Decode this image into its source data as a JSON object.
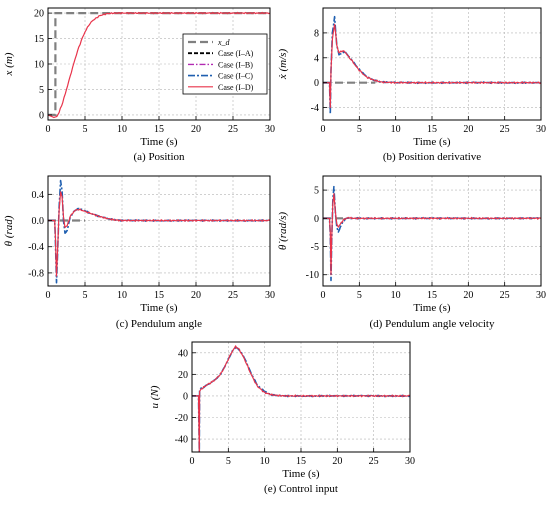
{
  "legend": {
    "entries": [
      {
        "label": "x_d",
        "color": "#808080",
        "dash": "8,4",
        "width": 2.2
      },
      {
        "label": "Case (I–A)",
        "color": "#000000",
        "dash": "4,2",
        "width": 1.8
      },
      {
        "label": "Case (I–B)",
        "color": "#b22ab2",
        "dash": "6,2,1.5,2",
        "width": 1.4
      },
      {
        "label": "Case (I–C)",
        "color": "#1f5fb0",
        "dash": "7,2,2,2",
        "width": 1.6
      },
      {
        "label": "Case (I–D)",
        "color": "#e8334a",
        "dash": "",
        "width": 1.2
      }
    ]
  },
  "chart_data": [
    {
      "type": "line",
      "caption": "(a) Position",
      "xlabel": "Time (s)",
      "ylabel": "x (m)",
      "xlim": [
        0,
        30
      ],
      "ylim": [
        -1,
        21
      ],
      "xticks": [
        0,
        5,
        10,
        15,
        20,
        25,
        30
      ],
      "yticks": [
        0,
        5,
        10,
        15,
        20
      ],
      "grid": true,
      "legend_position": "right",
      "reference": {
        "name": "x_d",
        "x": [
          0,
          1,
          1,
          30
        ],
        "y": [
          0,
          0,
          20,
          20
        ]
      },
      "series": [
        {
          "name": "Case (I–D)",
          "x": [
            0,
            0.8,
            1.2,
            1.5,
            2,
            2.5,
            3,
            3.5,
            4,
            4.5,
            5,
            5.5,
            6,
            7,
            8,
            9,
            10,
            15,
            20,
            25,
            30
          ],
          "y": [
            0,
            -0.5,
            -0.3,
            0.5,
            2.5,
            5,
            7.6,
            10.2,
            12.6,
            14.6,
            16.3,
            17.6,
            18.5,
            19.5,
            19.9,
            20.0,
            20.0,
            20.0,
            20.0,
            20.0,
            20.0
          ]
        }
      ]
    },
    {
      "type": "line",
      "caption": "(b) Position derivative",
      "xlabel": "Time (s)",
      "ylabel": "ẋ (m/s)",
      "xlim": [
        0,
        30
      ],
      "ylim": [
        -6,
        12
      ],
      "xticks": [
        0,
        5,
        10,
        15,
        20,
        25,
        30
      ],
      "yticks": [
        -4,
        0,
        4,
        8
      ],
      "grid": true,
      "reference": {
        "name": "ẋ_d",
        "x": [
          0,
          7.2
        ],
        "y": [
          0,
          0
        ]
      },
      "series": [
        {
          "name": "Case (I–C)",
          "x": [
            0,
            0.9,
            1.0,
            1.1,
            1.3,
            1.6,
            1.9,
            2.2,
            2.6,
            3.0,
            3.5,
            4.0,
            4.5,
            5,
            5.5,
            6,
            7,
            8,
            10,
            15,
            20,
            25,
            30
          ],
          "y": [
            0,
            0,
            -5,
            2,
            8,
            10.5,
            6,
            4.5,
            4.8,
            5.0,
            4.3,
            3.6,
            2.8,
            2.1,
            1.5,
            1.0,
            0.4,
            0.1,
            0,
            0,
            0,
            0,
            0
          ]
        },
        {
          "name": "Case (I–D)",
          "x": [
            0,
            0.9,
            1.0,
            1.1,
            1.3,
            1.6,
            1.9,
            2.2,
            2.6,
            3.0,
            3.5,
            4.0,
            4.5,
            5,
            5.5,
            6,
            7,
            8,
            10,
            15,
            20,
            25,
            30
          ],
          "y": [
            0,
            0,
            -4,
            2,
            7,
            9.5,
            6,
            4.8,
            5.1,
            5.0,
            4.2,
            3.5,
            2.7,
            2.0,
            1.4,
            0.9,
            0.4,
            0.1,
            0,
            0,
            0,
            0,
            0
          ]
        }
      ]
    },
    {
      "type": "line",
      "caption": "(c) Pendulum angle",
      "xlabel": "Time (s)",
      "ylabel": "θ (rad)",
      "xlim": [
        0,
        30
      ],
      "ylim": [
        -1.0,
        0.68
      ],
      "xticks": [
        0,
        5,
        10,
        15,
        20,
        25,
        30
      ],
      "yticks": [
        -0.8,
        -0.4,
        0.0,
        0.4
      ],
      "grid": true,
      "reference": {
        "name": "θ_d",
        "x": [
          0,
          5
        ],
        "y": [
          0,
          0
        ]
      },
      "series": [
        {
          "name": "Case (I–C)",
          "x": [
            0,
            0.9,
            1.0,
            1.15,
            1.3,
            1.5,
            1.7,
            1.9,
            2.1,
            2.3,
            2.6,
            3.0,
            3.5,
            4.0,
            4.5,
            5.0,
            5.5,
            6,
            7,
            8,
            9,
            10,
            15,
            20,
            25,
            30
          ],
          "y": [
            0,
            0,
            -0.3,
            -0.95,
            -0.5,
            0.2,
            0.6,
            0.45,
            0.0,
            -0.2,
            -0.15,
            0.05,
            0.14,
            0.18,
            0.17,
            0.15,
            0.12,
            0.1,
            0.06,
            0.03,
            0.01,
            0,
            0,
            0,
            0,
            0
          ]
        },
        {
          "name": "Case (I–D)",
          "x": [
            0,
            0.9,
            1.0,
            1.15,
            1.3,
            1.5,
            1.7,
            1.9,
            2.1,
            2.3,
            2.6,
            3.0,
            3.5,
            4.0,
            4.5,
            5.0,
            5.5,
            6,
            7,
            8,
            9,
            10,
            15,
            20,
            25,
            30
          ],
          "y": [
            0,
            0,
            -0.25,
            -0.85,
            -0.45,
            0.15,
            0.45,
            0.35,
            0.05,
            -0.1,
            -0.08,
            0.06,
            0.14,
            0.17,
            0.16,
            0.14,
            0.12,
            0.1,
            0.06,
            0.03,
            0.01,
            0,
            0,
            0,
            0,
            0
          ]
        }
      ]
    },
    {
      "type": "line",
      "caption": "(d) Pendulum angle velocity",
      "xlabel": "Time (s)",
      "ylabel": "θ̇ (rad/s)",
      "xlim": [
        0,
        30
      ],
      "ylim": [
        -12,
        7.5
      ],
      "xticks": [
        0,
        5,
        10,
        15,
        20,
        25,
        30
      ],
      "yticks": [
        -10,
        -5,
        0,
        5
      ],
      "grid": true,
      "reference": {
        "name": "θ̇_d",
        "x": [
          0,
          3
        ],
        "y": [
          0,
          0
        ]
      },
      "series": [
        {
          "name": "Case (I–C)",
          "x": [
            0,
            0.9,
            1.0,
            1.1,
            1.2,
            1.35,
            1.5,
            1.7,
            1.9,
            2.1,
            2.4,
            2.8,
            3.2,
            3.6,
            4,
            5,
            10,
            15,
            20,
            25,
            30
          ],
          "y": [
            0,
            0,
            -3,
            -11,
            -4,
            3,
            5.5,
            1,
            -1.5,
            -2.5,
            -1.5,
            -0.5,
            0,
            0.1,
            0,
            0,
            0,
            0,
            0,
            0,
            0
          ]
        },
        {
          "name": "Case (I–D)",
          "x": [
            0,
            0.9,
            1.0,
            1.1,
            1.2,
            1.35,
            1.5,
            1.7,
            1.9,
            2.1,
            2.4,
            2.8,
            3.2,
            3.6,
            4,
            5,
            10,
            15,
            20,
            25,
            30
          ],
          "y": [
            0,
            0,
            -2.5,
            -10,
            -3.5,
            2.5,
            4.5,
            1,
            -1,
            -1.5,
            -1,
            -0.3,
            0,
            0.1,
            0,
            0,
            0,
            0,
            0,
            0,
            0
          ]
        }
      ]
    },
    {
      "type": "line",
      "caption": "(e) Control input",
      "xlabel": "Time (s)",
      "ylabel": "u (N)",
      "xlim": [
        0,
        30
      ],
      "ylim": [
        -52,
        50
      ],
      "xticks": [
        0,
        5,
        10,
        15,
        20,
        25,
        30
      ],
      "yticks": [
        -40,
        -20,
        0,
        20,
        40
      ],
      "grid": true,
      "series": [
        {
          "name": "Case (I–C)",
          "x": [
            0,
            0.9,
            1.0,
            1.05,
            1.2,
            1.6,
            2,
            2.5,
            3,
            3.5,
            4,
            4.5,
            5,
            5.5,
            6,
            6.5,
            7,
            7.5,
            8,
            8.5,
            9,
            10,
            11,
            12,
            13,
            15,
            20,
            25,
            30
          ],
          "y": [
            0,
            0,
            -52,
            5,
            7,
            8,
            10,
            12,
            14,
            17,
            21,
            27,
            34,
            41,
            45,
            43,
            38,
            31,
            23,
            16,
            10,
            4,
            1,
            0.3,
            0,
            0,
            0,
            0,
            0
          ]
        },
        {
          "name": "Case (I–D)",
          "x": [
            0,
            0.9,
            1.0,
            1.05,
            1.2,
            1.6,
            2,
            2.5,
            3,
            3.5,
            4,
            4.5,
            5,
            5.5,
            6,
            6.5,
            7,
            7.5,
            8,
            8.5,
            9,
            10,
            11,
            12,
            13,
            15,
            20,
            25,
            30
          ],
          "y": [
            0,
            0,
            -52,
            4,
            6,
            8,
            10,
            12,
            14,
            17,
            21,
            27,
            34,
            41,
            46,
            43,
            37,
            30,
            22,
            15,
            9,
            3,
            1,
            0.3,
            0,
            0,
            0,
            0,
            0
          ]
        }
      ]
    }
  ]
}
